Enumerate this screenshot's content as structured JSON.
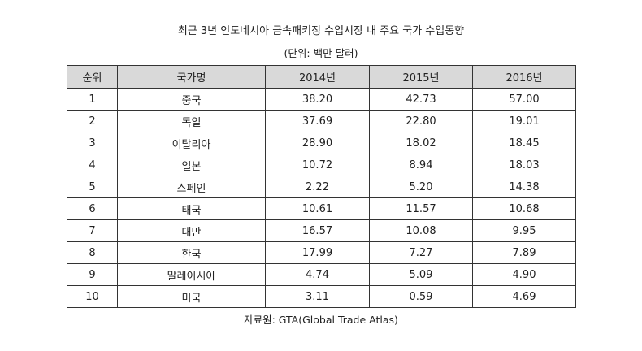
{
  "title": "최근 3년 인도네시아 금속패키징 수입시장 내 주요 국가 수입동향",
  "unit": "(단위: 백만 달러)",
  "table": {
    "headers": [
      "순위",
      "국가명",
      "2014년",
      "2015년",
      "2016년"
    ],
    "rows": [
      [
        "1",
        "중국",
        "38.20",
        "42.73",
        "57.00"
      ],
      [
        "2",
        "독일",
        "37.69",
        "22.80",
        "19.01"
      ],
      [
        "3",
        "이탈리아",
        "28.90",
        "18.02",
        "18.45"
      ],
      [
        "4",
        "일본",
        "10.72",
        "8.94",
        "18.03"
      ],
      [
        "5",
        "스페인",
        "2.22",
        "5.20",
        "14.38"
      ],
      [
        "6",
        "태국",
        "10.61",
        "11.57",
        "10.68"
      ],
      [
        "7",
        "대만",
        "16.57",
        "10.08",
        "9.95"
      ],
      [
        "8",
        "한국",
        "17.99",
        "7.27",
        "7.89"
      ],
      [
        "9",
        "말레이시아",
        "4.74",
        "5.09",
        "4.90"
      ],
      [
        "10",
        "미국",
        "3.11",
        "0.59",
        "4.69"
      ]
    ]
  },
  "source": "자료원: GTA(Global Trade Atlas)"
}
